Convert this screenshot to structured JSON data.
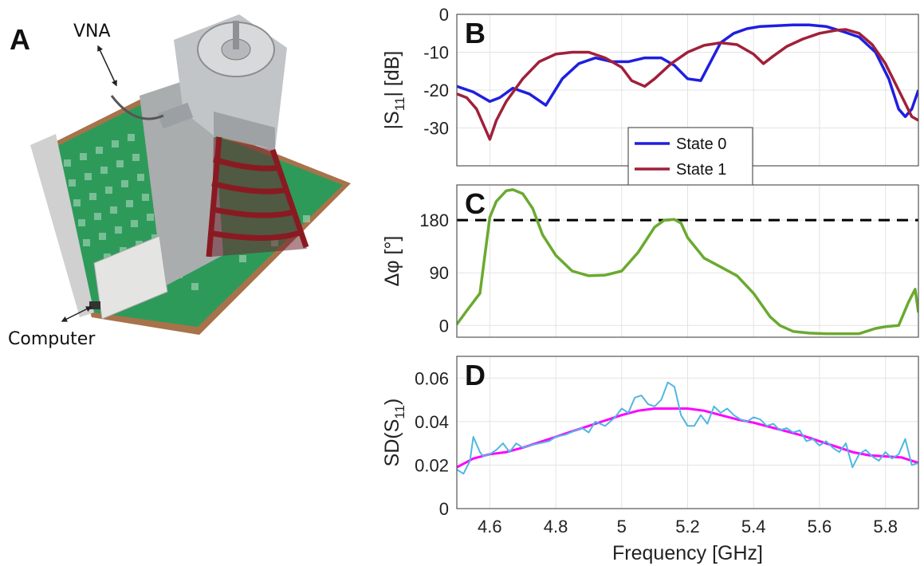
{
  "figure": {
    "panel_a": {
      "letter": "A",
      "callout_top": "VNA",
      "callout_bottom": "Computer"
    },
    "colors": {
      "state0": "#1f1fe0",
      "state1": "#a0203a",
      "phase": "#6aaa30",
      "sd_raw": "#4fb8e0",
      "sd_fit": "#ff00ff",
      "ref_line": "#000000",
      "pcb_green": "#2e9a5a",
      "horn_red": "#8a1a22",
      "metal": "#b9bcbe"
    }
  },
  "chart_data": [
    {
      "id": "B",
      "type": "line",
      "letter": "B",
      "ylabel_main": "|S",
      "ylabel_sub": "11",
      "ylabel_tail": "| [dB]",
      "xlim": [
        4.5,
        5.9
      ],
      "ylim": [
        -40,
        0
      ],
      "yticks": [
        0,
        -10,
        -20,
        -30
      ],
      "ytick_labels": [
        "0",
        "-10",
        "-20",
        "-30"
      ],
      "xticks": [
        4.6,
        4.8,
        5.0,
        5.2,
        5.4,
        5.6,
        5.8
      ],
      "grid": true,
      "legend_position": "center",
      "series": [
        {
          "name": "State 0",
          "color_key": "state0",
          "x": [
            4.5,
            4.55,
            4.6,
            4.63,
            4.67,
            4.72,
            4.77,
            4.82,
            4.87,
            4.92,
            4.97,
            5.02,
            5.07,
            5.12,
            5.16,
            5.2,
            5.24,
            5.27,
            5.3,
            5.34,
            5.38,
            5.42,
            5.47,
            5.52,
            5.57,
            5.62,
            5.67,
            5.72,
            5.77,
            5.81,
            5.84,
            5.86,
            5.88,
            5.9
          ],
          "y": [
            -19,
            -20.5,
            -23,
            -22,
            -19.5,
            -21,
            -24,
            -17,
            -13,
            -11.5,
            -12.5,
            -12.5,
            -11.5,
            -11.5,
            -13.5,
            -17,
            -17.5,
            -12.5,
            -7.5,
            -5,
            -3.8,
            -3.2,
            -3,
            -2.8,
            -2.8,
            -3.2,
            -4.5,
            -6,
            -10,
            -17,
            -25,
            -27,
            -25,
            -20
          ]
        },
        {
          "name": "State 1",
          "color_key": "state1",
          "x": [
            4.5,
            4.53,
            4.56,
            4.58,
            4.6,
            4.62,
            4.65,
            4.7,
            4.75,
            4.8,
            4.85,
            4.9,
            4.95,
            5.0,
            5.03,
            5.07,
            5.1,
            5.15,
            5.2,
            5.25,
            5.3,
            5.35,
            5.4,
            5.43,
            5.46,
            5.5,
            5.55,
            5.6,
            5.65,
            5.68,
            5.72,
            5.76,
            5.8,
            5.84,
            5.88,
            5.9
          ],
          "y": [
            -21,
            -22,
            -25,
            -29,
            -33,
            -28,
            -23,
            -17,
            -12.5,
            -10.5,
            -10,
            -10,
            -11.5,
            -14,
            -17.5,
            -19,
            -17,
            -13,
            -10,
            -8.2,
            -7.5,
            -8,
            -10.5,
            -13,
            -11,
            -8.5,
            -6.5,
            -5,
            -4.2,
            -4,
            -5,
            -8,
            -13,
            -20,
            -27,
            -28
          ]
        }
      ]
    },
    {
      "id": "C",
      "type": "line",
      "letter": "C",
      "ylabel": "Δφ [°]",
      "xlim": [
        4.5,
        5.9
      ],
      "ylim": [
        -20,
        240
      ],
      "yticks": [
        0,
        90,
        180
      ],
      "ytick_labels": [
        "0",
        "90",
        "180"
      ],
      "xticks": [
        4.6,
        4.8,
        5.0,
        5.2,
        5.4,
        5.6,
        5.8
      ],
      "reference_line_y": 180,
      "grid": true,
      "series": [
        {
          "name": "",
          "color_key": "phase",
          "x": [
            4.5,
            4.53,
            4.57,
            4.6,
            4.62,
            4.65,
            4.67,
            4.7,
            4.73,
            4.76,
            4.8,
            4.85,
            4.9,
            4.95,
            5.0,
            5.05,
            5.1,
            5.13,
            5.16,
            5.18,
            5.2,
            5.25,
            5.3,
            5.35,
            5.4,
            5.45,
            5.48,
            5.52,
            5.57,
            5.62,
            5.67,
            5.72,
            5.77,
            5.8,
            5.84,
            5.87,
            5.89,
            5.9
          ],
          "y": [
            2,
            25,
            55,
            185,
            212,
            230,
            232,
            225,
            200,
            155,
            120,
            93,
            85,
            86,
            93,
            125,
            168,
            180,
            181,
            175,
            150,
            115,
            100,
            85,
            55,
            15,
            0,
            -10,
            -13,
            -14,
            -14,
            -14,
            -5,
            -2,
            0,
            40,
            62,
            22
          ]
        }
      ]
    },
    {
      "id": "D",
      "type": "line",
      "letter": "D",
      "ylabel_main": "SD(S",
      "ylabel_sub": "11",
      "ylabel_tail": ")",
      "xlabel": "Frequency [GHz]",
      "xlim": [
        4.5,
        5.9
      ],
      "ylim": [
        0,
        0.07
      ],
      "yticks": [
        0,
        0.02,
        0.04,
        0.06
      ],
      "ytick_labels": [
        "0",
        "0.02",
        "0.04",
        "0.06"
      ],
      "xticks": [
        4.6,
        4.8,
        5.0,
        5.2,
        5.4,
        5.6,
        5.8
      ],
      "xtick_labels": [
        "4.6",
        "4.8",
        "5",
        "5.2",
        "5.4",
        "5.6",
        "5.8"
      ],
      "grid": true,
      "series": [
        {
          "name": "",
          "color_key": "sd_fit",
          "x": [
            4.5,
            4.55,
            4.6,
            4.65,
            4.7,
            4.75,
            4.8,
            4.85,
            4.9,
            4.95,
            5.0,
            5.05,
            5.1,
            5.15,
            5.2,
            5.25,
            5.3,
            5.35,
            5.4,
            5.45,
            5.5,
            5.55,
            5.6,
            5.65,
            5.7,
            5.75,
            5.8,
            5.85,
            5.9
          ],
          "y": [
            0.019,
            0.023,
            0.025,
            0.026,
            0.028,
            0.0305,
            0.033,
            0.0355,
            0.038,
            0.0405,
            0.043,
            0.045,
            0.046,
            0.046,
            0.046,
            0.045,
            0.043,
            0.041,
            0.0395,
            0.0375,
            0.0355,
            0.0335,
            0.031,
            0.0285,
            0.026,
            0.0245,
            0.024,
            0.0235,
            0.021
          ]
        },
        {
          "name": "",
          "color_key": "sd_raw",
          "x": [
            4.5,
            4.52,
            4.54,
            4.55,
            4.57,
            4.58,
            4.6,
            4.62,
            4.64,
            4.66,
            4.68,
            4.7,
            4.72,
            4.75,
            4.78,
            4.8,
            4.83,
            4.86,
            4.88,
            4.9,
            4.92,
            4.95,
            4.98,
            5.0,
            5.02,
            5.04,
            5.06,
            5.08,
            5.1,
            5.12,
            5.14,
            5.16,
            5.18,
            5.2,
            5.22,
            5.24,
            5.26,
            5.28,
            5.3,
            5.32,
            5.34,
            5.36,
            5.38,
            5.4,
            5.42,
            5.44,
            5.46,
            5.48,
            5.5,
            5.52,
            5.54,
            5.56,
            5.58,
            5.6,
            5.62,
            5.64,
            5.66,
            5.68,
            5.7,
            5.72,
            5.74,
            5.76,
            5.78,
            5.8,
            5.82,
            5.84,
            5.86,
            5.88,
            5.9
          ],
          "y": [
            0.018,
            0.016,
            0.022,
            0.033,
            0.026,
            0.024,
            0.025,
            0.027,
            0.03,
            0.026,
            0.03,
            0.028,
            0.029,
            0.03,
            0.031,
            0.033,
            0.034,
            0.036,
            0.037,
            0.035,
            0.04,
            0.038,
            0.042,
            0.046,
            0.044,
            0.051,
            0.052,
            0.048,
            0.047,
            0.05,
            0.058,
            0.056,
            0.043,
            0.038,
            0.038,
            0.043,
            0.039,
            0.047,
            0.044,
            0.046,
            0.043,
            0.041,
            0.04,
            0.042,
            0.041,
            0.038,
            0.039,
            0.036,
            0.037,
            0.035,
            0.036,
            0.031,
            0.032,
            0.029,
            0.031,
            0.028,
            0.026,
            0.03,
            0.019,
            0.025,
            0.027,
            0.024,
            0.022,
            0.026,
            0.023,
            0.025,
            0.032,
            0.02,
            0.021
          ]
        }
      ]
    }
  ]
}
